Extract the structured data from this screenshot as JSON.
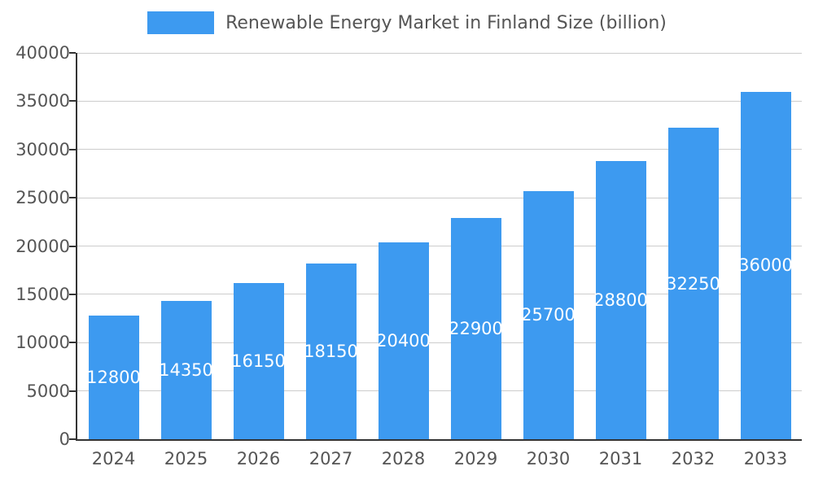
{
  "chart_data": {
    "type": "bar",
    "title": "Renewable Energy Market in Finland Size (billion)",
    "categories": [
      "2024",
      "2025",
      "2026",
      "2027",
      "2028",
      "2029",
      "2030",
      "2031",
      "2032",
      "2033"
    ],
    "values": [
      12800,
      14350,
      16150,
      18150,
      20400,
      22900,
      25700,
      28800,
      32250,
      36000
    ],
    "xlabel": "",
    "ylabel": "",
    "ylim": [
      0,
      40000
    ],
    "ytick_step": 5000,
    "grid": true,
    "legend_position": "top",
    "colors": {
      "bar": "#3D9AF0",
      "bar_value_label": "#FFFFFF",
      "axis_text": "#555555",
      "gridline": "#CCCCCC",
      "axis_line": "#333333",
      "background": "#FFFFFF"
    }
  }
}
